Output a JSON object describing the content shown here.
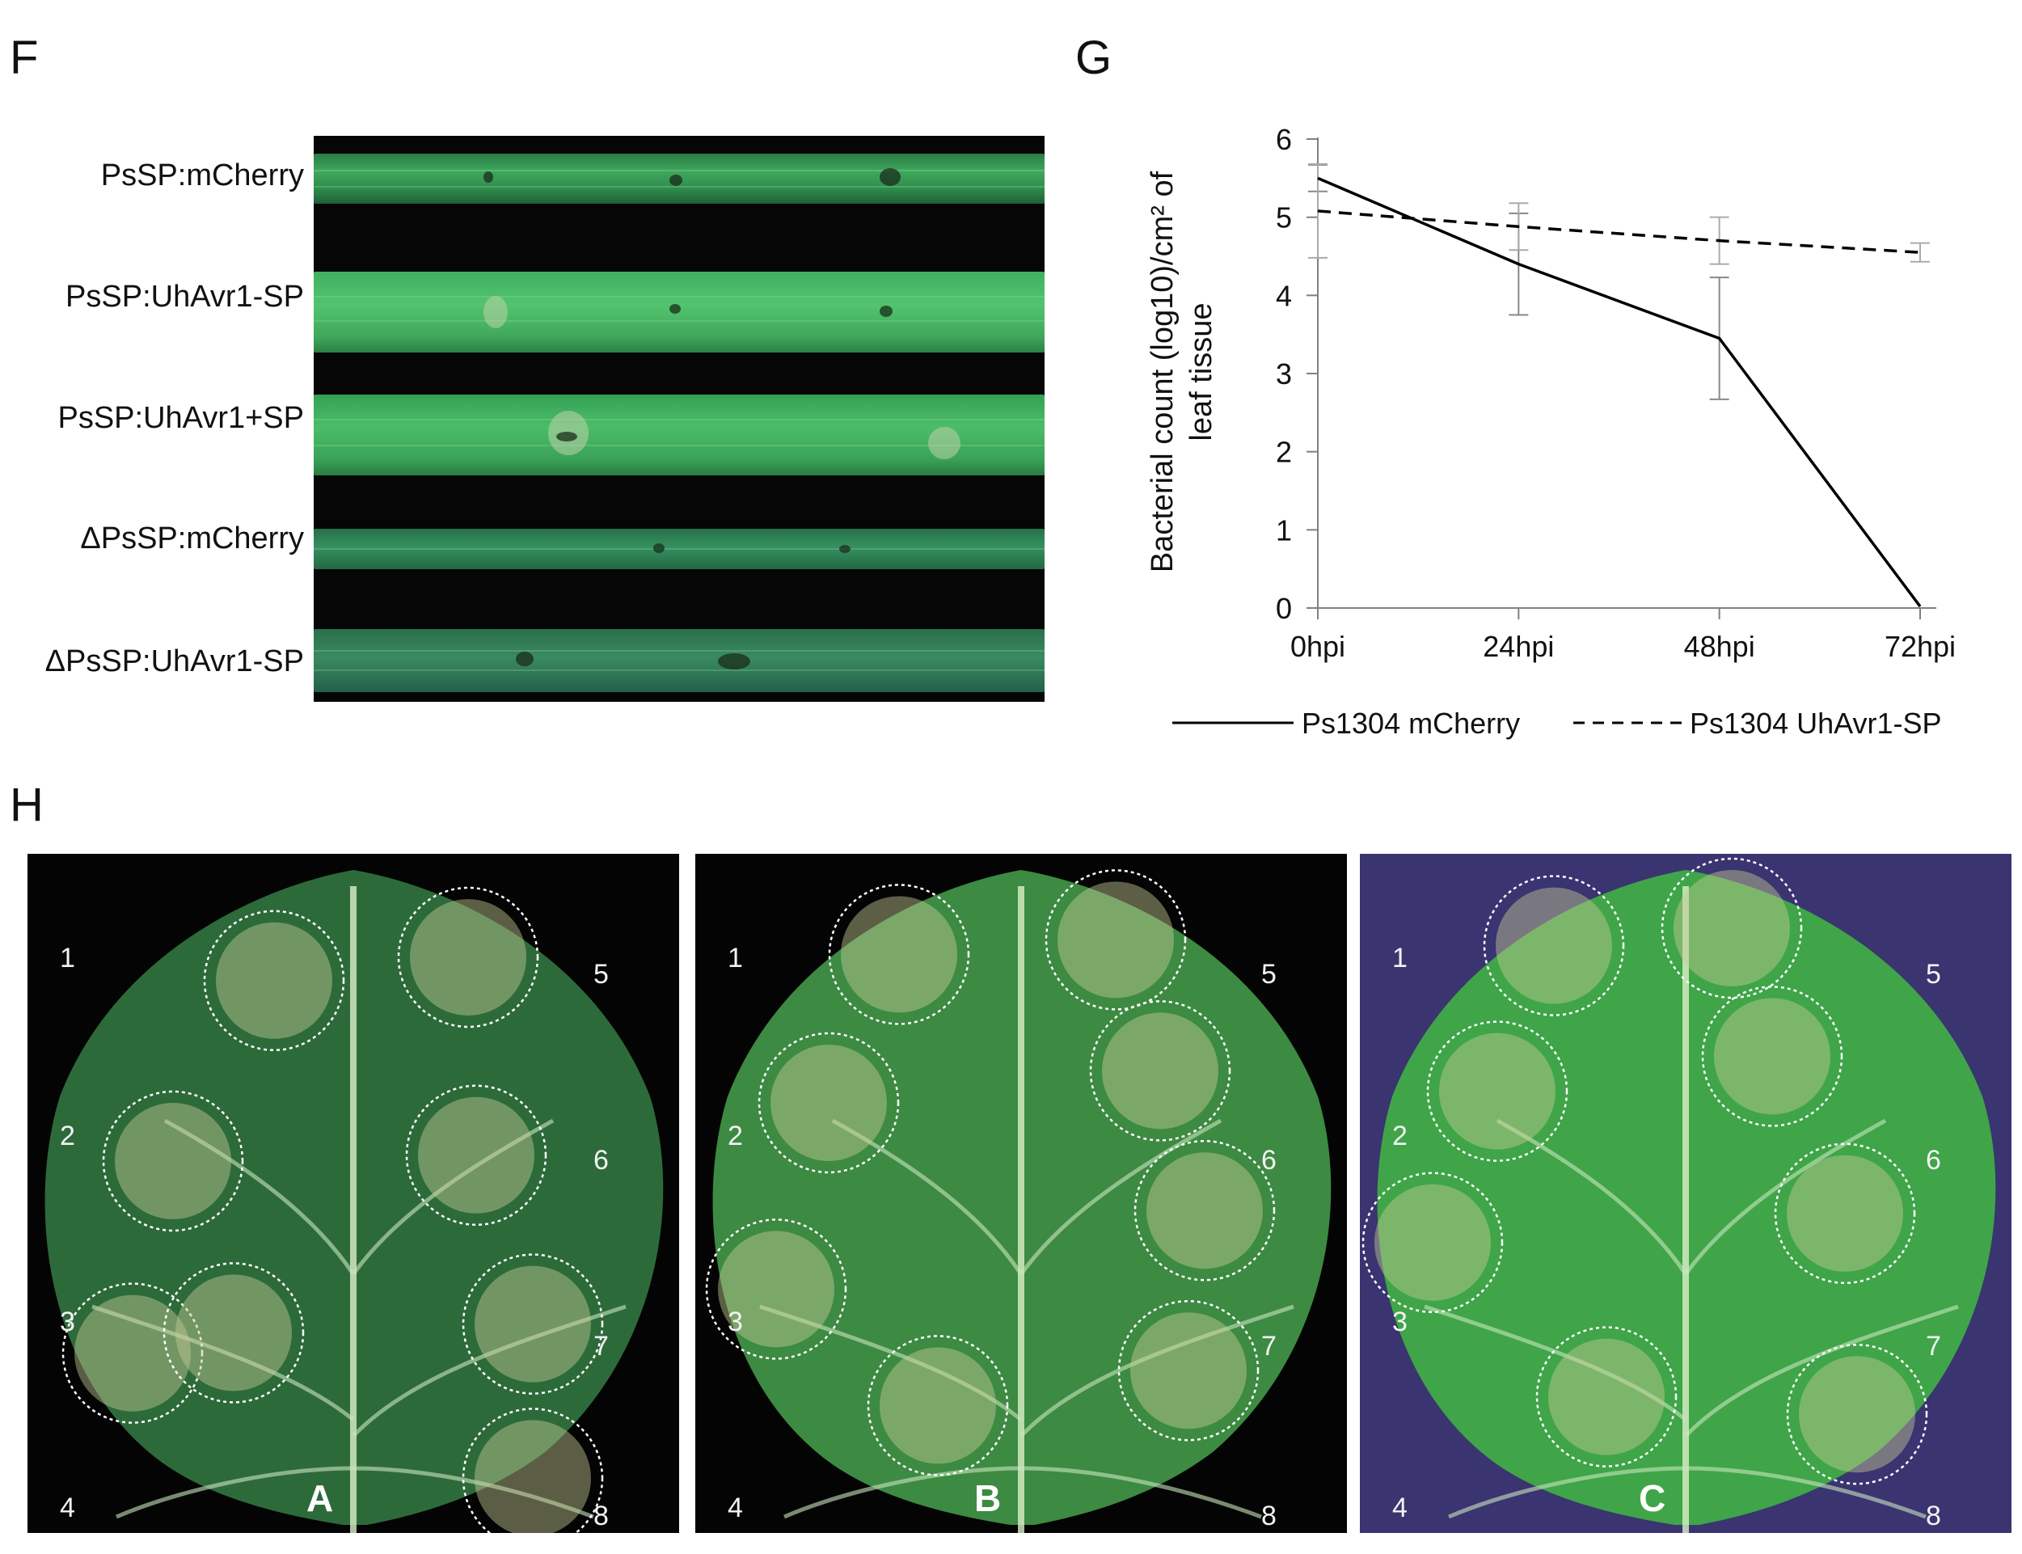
{
  "panels": {
    "F": "F",
    "G": "G",
    "H": "H"
  },
  "panelF": {
    "strips": [
      {
        "label": "PsSP:mCherry"
      },
      {
        "label": "PsSP:UhAvr1-SP"
      },
      {
        "label": "PsSP:UhAvr1+SP"
      },
      {
        "label": "ΔPsSP:mCherry"
      },
      {
        "label": "ΔPsSP:UhAvr1-SP"
      }
    ]
  },
  "chart_data": {
    "type": "line",
    "title": "",
    "ylabel_line1": "Bacterial count (log10)/cm² of",
    "ylabel_line2": "leaf tissue",
    "xlabel": "",
    "categories": [
      "0hpi",
      "24hpi",
      "48hpi",
      "72hpi"
    ],
    "ylim": [
      0,
      6
    ],
    "yticks": [
      "0",
      "1",
      "2",
      "3",
      "4",
      "5",
      "6"
    ],
    "series": [
      {
        "name": "Ps1304 mCherry",
        "style": "solid",
        "values": [
          5.5,
          4.4,
          3.45,
          0.02
        ],
        "err": [
          0.17,
          0.65,
          0.78,
          0
        ]
      },
      {
        "name": "Ps1304 UhAvr1-SP",
        "style": "dashed",
        "values": [
          5.08,
          4.88,
          4.7,
          4.55
        ],
        "err": [
          0.6,
          0.3,
          0.3,
          0.12
        ]
      }
    ],
    "grid": false,
    "legend_position": "bottom"
  },
  "panelH": {
    "photos": [
      {
        "letter": "A",
        "background": "#030403",
        "leaf": "#2d6a3a"
      },
      {
        "letter": "B",
        "background": "#040404",
        "leaf": "#3d8a42"
      },
      {
        "letter": "C",
        "background": "#3a3470",
        "leaf": "#3fa548"
      }
    ],
    "spot_numbers": [
      "1",
      "2",
      "3",
      "4",
      "5",
      "6",
      "7",
      "8"
    ]
  }
}
